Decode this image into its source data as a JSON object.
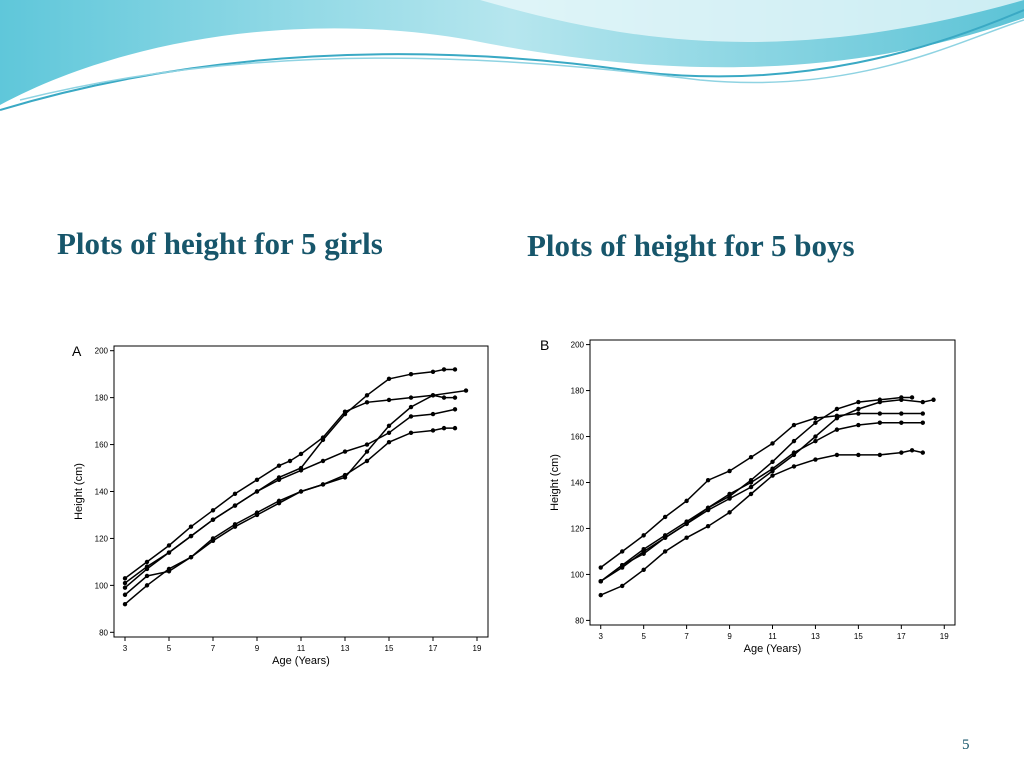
{
  "page_number": 5,
  "chart_data": [
    {
      "type": "line",
      "title": "Plots of height for 5 girls",
      "panel_label": "A",
      "x_label": "Age (Years)",
      "y_label": "Height (cm)",
      "xlim": [
        2.5,
        19.5
      ],
      "xticks": [
        3,
        5,
        7,
        9,
        11,
        13,
        15,
        17,
        19
      ],
      "ylim": [
        78,
        202
      ],
      "yticks": [
        80,
        100,
        120,
        140,
        160,
        180,
        200
      ],
      "series": [
        {
          "color": "#000000",
          "x": [
            3,
            4,
            5,
            6,
            7,
            8,
            9,
            10,
            11,
            12,
            13,
            14,
            15,
            16,
            17,
            17.5,
            18
          ],
          "values": [
            101,
            108,
            114,
            121,
            128,
            134,
            140,
            146,
            150,
            162,
            173,
            181,
            188,
            190,
            191,
            192,
            192
          ]
        },
        {
          "color": "#000000",
          "x": [
            3,
            4,
            5,
            6,
            7,
            8,
            9,
            10,
            11,
            12,
            13,
            14,
            15,
            16,
            17,
            18.5
          ],
          "values": [
            92,
            100,
            107,
            112,
            119,
            125,
            130,
            135,
            140,
            143,
            146,
            157,
            168,
            176,
            181,
            183
          ]
        },
        {
          "color": "#000000",
          "x": [
            3,
            4,
            5,
            6,
            7,
            8,
            9,
            10,
            10.5,
            11,
            12,
            13,
            14,
            15,
            16,
            17,
            17.5,
            18
          ],
          "values": [
            103,
            110,
            117,
            125,
            132,
            139,
            145,
            151,
            153,
            156,
            163,
            174,
            178,
            179,
            180,
            181,
            180,
            180
          ]
        },
        {
          "color": "#000000",
          "x": [
            3,
            4,
            5,
            6,
            7,
            8,
            9,
            10,
            11,
            12,
            13,
            14,
            15,
            16,
            17,
            18
          ],
          "values": [
            99,
            107,
            114,
            121,
            128,
            134,
            140,
            145,
            149,
            153,
            157,
            160,
            165,
            172,
            173,
            175
          ]
        },
        {
          "color": "#000000",
          "x": [
            3,
            4,
            5,
            6,
            7,
            8,
            9,
            10,
            11,
            12,
            13,
            14,
            15,
            16,
            17,
            17.5,
            18
          ],
          "values": [
            96,
            104,
            106,
            112,
            120,
            126,
            131,
            136,
            140,
            143,
            147,
            153,
            161,
            165,
            166,
            167,
            167
          ]
        }
      ]
    },
    {
      "type": "line",
      "title": "Plots of height for 5 boys",
      "panel_label": "B",
      "x_label": "Age (Years)",
      "y_label": "Height (cm)",
      "xlim": [
        2.5,
        19.5
      ],
      "xticks": [
        3,
        5,
        7,
        9,
        11,
        13,
        15,
        17,
        19
      ],
      "ylim": [
        78,
        202
      ],
      "yticks": [
        80,
        100,
        120,
        140,
        160,
        180,
        200
      ],
      "series": [
        {
          "color": "#000000",
          "x": [
            3,
            4,
            5,
            6,
            7,
            8,
            9,
            10,
            11,
            12,
            13,
            14,
            15,
            16,
            17,
            17.5
          ],
          "values": [
            97,
            104,
            111,
            117,
            123,
            129,
            134,
            141,
            149,
            158,
            166,
            172,
            175,
            176,
            177,
            177
          ]
        },
        {
          "color": "#000000",
          "x": [
            3,
            4,
            5,
            6,
            7,
            8,
            9,
            10,
            11,
            12,
            13,
            14,
            15,
            16,
            17,
            18
          ],
          "values": [
            103,
            110,
            117,
            125,
            132,
            141,
            145,
            151,
            157,
            165,
            168,
            169,
            170,
            170,
            170,
            170
          ]
        },
        {
          "color": "#000000",
          "x": [
            3,
            4,
            5,
            6,
            7,
            8,
            9,
            10,
            11,
            12,
            13,
            14,
            15,
            16,
            17,
            18,
            18.5
          ],
          "values": [
            97,
            103,
            110,
            116,
            122,
            128,
            133,
            138,
            145,
            152,
            160,
            168,
            172,
            175,
            176,
            175,
            176
          ]
        },
        {
          "color": "#000000",
          "x": [
            3,
            4,
            5,
            6,
            7,
            8,
            9,
            10,
            11,
            12,
            13,
            14,
            15,
            16,
            17,
            18
          ],
          "values": [
            97,
            104,
            109,
            116,
            122,
            129,
            135,
            140,
            146,
            153,
            158,
            163,
            165,
            166,
            166,
            166
          ]
        },
        {
          "color": "#000000",
          "x": [
            3,
            4,
            5,
            6,
            7,
            8,
            9,
            10,
            11,
            12,
            13,
            14,
            15,
            16,
            17,
            17.5,
            18
          ],
          "values": [
            91,
            95,
            102,
            110,
            116,
            121,
            127,
            135,
            143,
            147,
            150,
            152,
            152,
            152,
            153,
            154,
            153
          ]
        }
      ]
    }
  ]
}
